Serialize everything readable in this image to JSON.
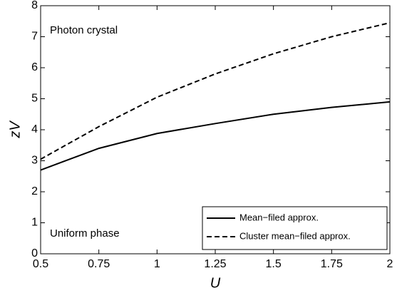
{
  "chart_data": {
    "type": "line",
    "x_label": "U",
    "y_label": "zV",
    "annotations": [
      "Photon crystal",
      "Uniform phase"
    ],
    "x": [
      0.5,
      0.6,
      0.75,
      1,
      1.25,
      1.5,
      1.75,
      2
    ],
    "series": [
      {
        "name": "Mean−filed approx.",
        "color": "#000000",
        "dash": "solid",
        "values": [
          2.7,
          2.98,
          3.4,
          3.88,
          4.2,
          4.5,
          4.72,
          4.9
        ]
      },
      {
        "name": "Cluster mean−filed approx.",
        "color": "#000000",
        "dash": "dashed",
        "values": [
          3.05,
          3.47,
          4.1,
          5.05,
          5.8,
          6.45,
          7.0,
          7.45
        ]
      }
    ],
    "xlim": [
      0.5,
      2
    ],
    "xticks": [
      0.5,
      0.75,
      1,
      1.25,
      1.5,
      1.75,
      2
    ],
    "ylim": [
      0,
      8
    ],
    "yticks": [
      0,
      1,
      2,
      3,
      4,
      5,
      6,
      7,
      8
    ],
    "legend": "lower right"
  }
}
